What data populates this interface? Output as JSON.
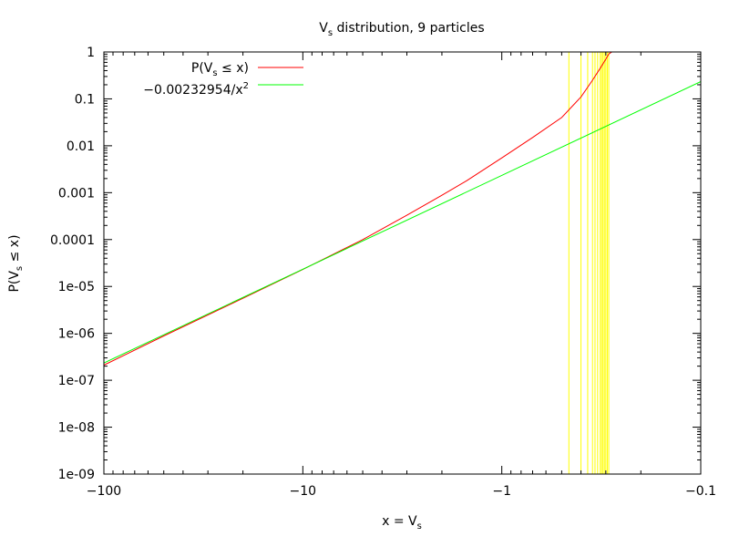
{
  "chart_data": {
    "type": "line",
    "title": {
      "main": "V",
      "sub": "s",
      "rest": " distribution, 9 particles"
    },
    "xlabel": {
      "main": "x = V",
      "sub": "s"
    },
    "ylabel": {
      "main": "P(V",
      "sub": "s",
      "rest": " ≤ x)"
    },
    "xscale": "log-negative",
    "yscale": "log",
    "xlim": [
      -100,
      -0.1
    ],
    "ylim": [
      1e-09,
      1
    ],
    "x_ticks": [
      {
        "value": -100,
        "label": "−100"
      },
      {
        "value": -10,
        "label": "−10"
      },
      {
        "value": -1,
        "label": "−1"
      },
      {
        "value": -0.1,
        "label": "−0.1"
      }
    ],
    "y_ticks": [
      {
        "value": 1,
        "label": "1"
      },
      {
        "value": 0.1,
        "label": "0.1"
      },
      {
        "value": 0.01,
        "label": "0.01"
      },
      {
        "value": 0.001,
        "label": "0.001"
      },
      {
        "value": 0.0001,
        "label": "0.0001"
      },
      {
        "value": 1e-05,
        "label": "1e-05"
      },
      {
        "value": 1e-06,
        "label": "1e-06"
      },
      {
        "value": 1e-07,
        "label": "1e-07"
      },
      {
        "value": 1e-08,
        "label": "1e-08"
      },
      {
        "value": 1e-09,
        "label": "1e-09"
      }
    ],
    "grid": false,
    "legend_position": "top-left",
    "series": [
      {
        "name": {
          "main": "P(V",
          "sub": "s",
          "rest": " ≤ x)"
        },
        "color": "#ff0000",
        "x": [
          -100,
          -50,
          -20,
          -10,
          -5,
          -3,
          -2,
          -1.5,
          -1,
          -0.7,
          -0.5,
          -0.4,
          -0.35,
          -0.32,
          -0.3,
          -0.29,
          -0.28
        ],
        "y": [
          2.1e-07,
          8.8e-07,
          5.6e-06,
          2.3e-05,
          0.0001,
          0.00033,
          0.00088,
          0.0018,
          0.0055,
          0.015,
          0.04,
          0.11,
          0.25,
          0.45,
          0.7,
          0.9,
          1.0
        ]
      },
      {
        "name": {
          "main": "−0.00232954/x",
          "sup": "2"
        },
        "color": "#00ff00",
        "x": [
          -100,
          -0.1
        ],
        "y": [
          2.33e-07,
          0.233
        ]
      }
    ],
    "vertical_lines": {
      "color": "#ffff00",
      "x": [
        -0.46,
        -0.4,
        -0.37,
        -0.35,
        -0.34,
        -0.33,
        -0.32,
        -0.315,
        -0.31,
        -0.305,
        -0.3,
        -0.295,
        -0.29
      ]
    }
  }
}
